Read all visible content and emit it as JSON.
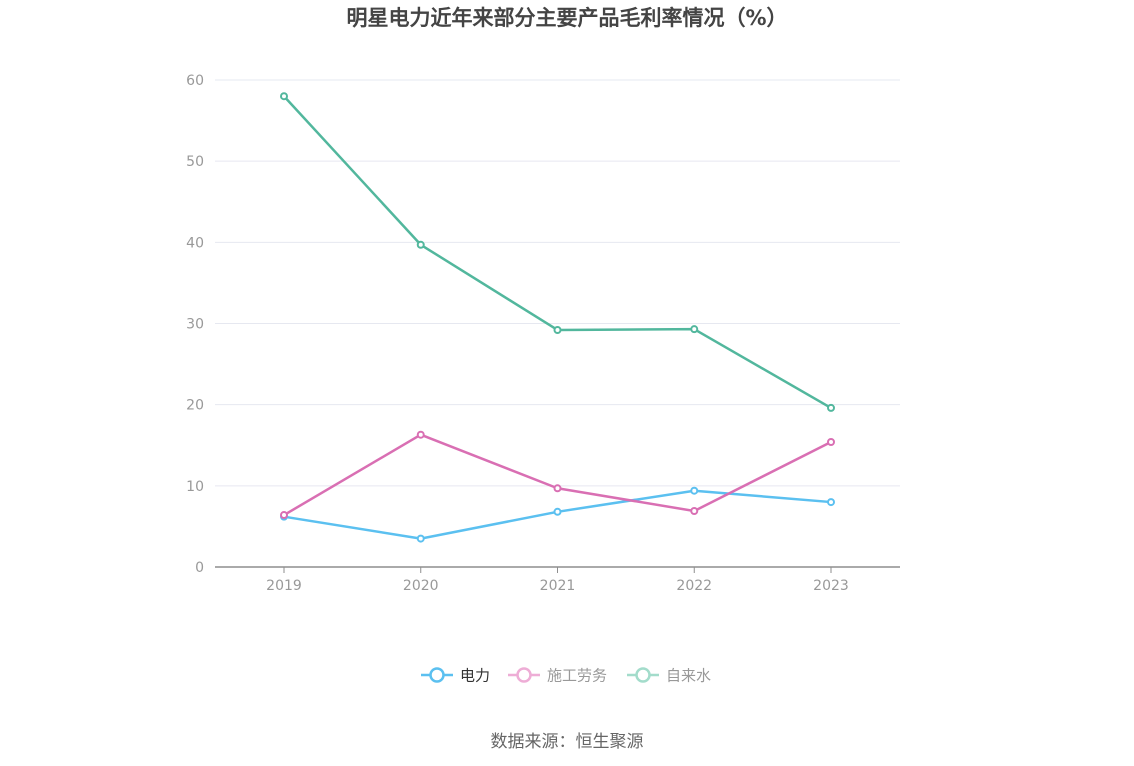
{
  "chart_data": {
    "type": "line",
    "title": "明星电力近年来部分主要产品毛利率情况（%）",
    "xlabel": "",
    "ylabel": "",
    "categories": [
      "2019",
      "2020",
      "2021",
      "2022",
      "2023"
    ],
    "ylim": [
      0,
      60
    ],
    "yticks": [
      0,
      10,
      20,
      30,
      40,
      50,
      60
    ],
    "grid": true,
    "legend_position": "bottom",
    "series": [
      {
        "name": "电力",
        "color": "#5bc0f0",
        "values": [
          6.2,
          3.5,
          6.8,
          9.4,
          8.0
        ]
      },
      {
        "name": "施工劳务",
        "color": "#d96fb3",
        "values": [
          6.4,
          16.3,
          9.7,
          6.9,
          15.4
        ]
      },
      {
        "name": "自来水",
        "color": "#52b79d",
        "values": [
          58.0,
          39.7,
          29.2,
          29.3,
          19.6
        ]
      }
    ]
  },
  "source": "数据来源：恒生聚源"
}
